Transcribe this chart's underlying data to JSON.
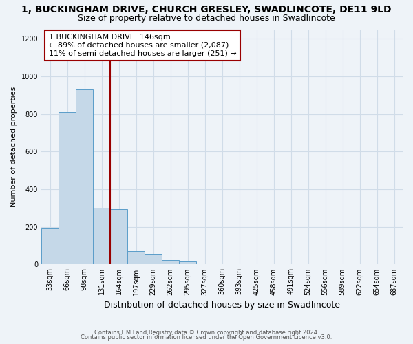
{
  "title1": "1, BUCKINGHAM DRIVE, CHURCH GRESLEY, SWADLINCOTE, DE11 9LD",
  "title2": "Size of property relative to detached houses in Swadlincote",
  "xlabel": "Distribution of detached houses by size in Swadlincote",
  "ylabel": "Number of detached properties",
  "footnote1": "Contains HM Land Registry data © Crown copyright and database right 2024.",
  "footnote2": "Contains public sector information licensed under the Open Government Licence v3.0.",
  "bar_labels": [
    "33sqm",
    "66sqm",
    "98sqm",
    "131sqm",
    "164sqm",
    "197sqm",
    "229sqm",
    "262sqm",
    "295sqm",
    "327sqm",
    "360sqm",
    "393sqm",
    "425sqm",
    "458sqm",
    "491sqm",
    "524sqm",
    "556sqm",
    "589sqm",
    "622sqm",
    "654sqm",
    "687sqm"
  ],
  "bar_heights": [
    190,
    810,
    930,
    300,
    295,
    70,
    55,
    25,
    15,
    5,
    2,
    1,
    0,
    0,
    0,
    0,
    0,
    0,
    0,
    0,
    0
  ],
  "bar_color": "#c5d8e8",
  "bar_edge_color": "#5b9dc9",
  "vline_color": "#990000",
  "annotation_text": "1 BUCKINGHAM DRIVE: 146sqm\n← 89% of detached houses are smaller (2,087)\n11% of semi-detached houses are larger (251) →",
  "annotation_box_color": "#ffffff",
  "annotation_box_edgecolor": "#990000",
  "ylim": [
    0,
    1250
  ],
  "yticks": [
    0,
    200,
    400,
    600,
    800,
    1000,
    1200
  ],
  "background_color": "#eef3f8",
  "grid_color": "#d0dce8",
  "title_fontsize": 10,
  "subtitle_fontsize": 9,
  "annotation_fontsize": 8,
  "ylabel_fontsize": 8,
  "xlabel_fontsize": 9,
  "tick_fontsize": 7,
  "footnote_fontsize": 6
}
